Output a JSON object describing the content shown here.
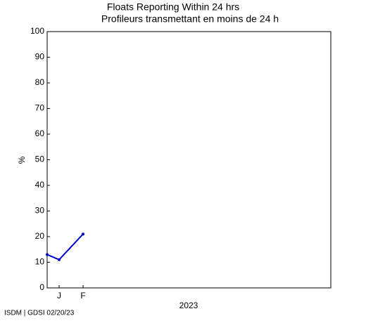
{
  "chart_data": {
    "type": "line",
    "title": "Floats Reporting Within 24 hrs",
    "subtitle": "Profileurs transmettant en moins de 24 h",
    "y_label": "%",
    "x_label": "2023",
    "footer": "ISDM | GDSI 02/20/23",
    "x": [
      0.5,
      1,
      2
    ],
    "values": [
      13,
      11,
      21
    ],
    "color": "#0000d0",
    "xlim": [
      0.5,
      12.35
    ],
    "xticks": [
      {
        "value": 1,
        "label": "J"
      },
      {
        "value": 2,
        "label": "F"
      }
    ],
    "ylim": [
      0,
      100
    ],
    "yticks": [
      0,
      10,
      20,
      30,
      40,
      50,
      60,
      70,
      80,
      90,
      100
    ]
  }
}
